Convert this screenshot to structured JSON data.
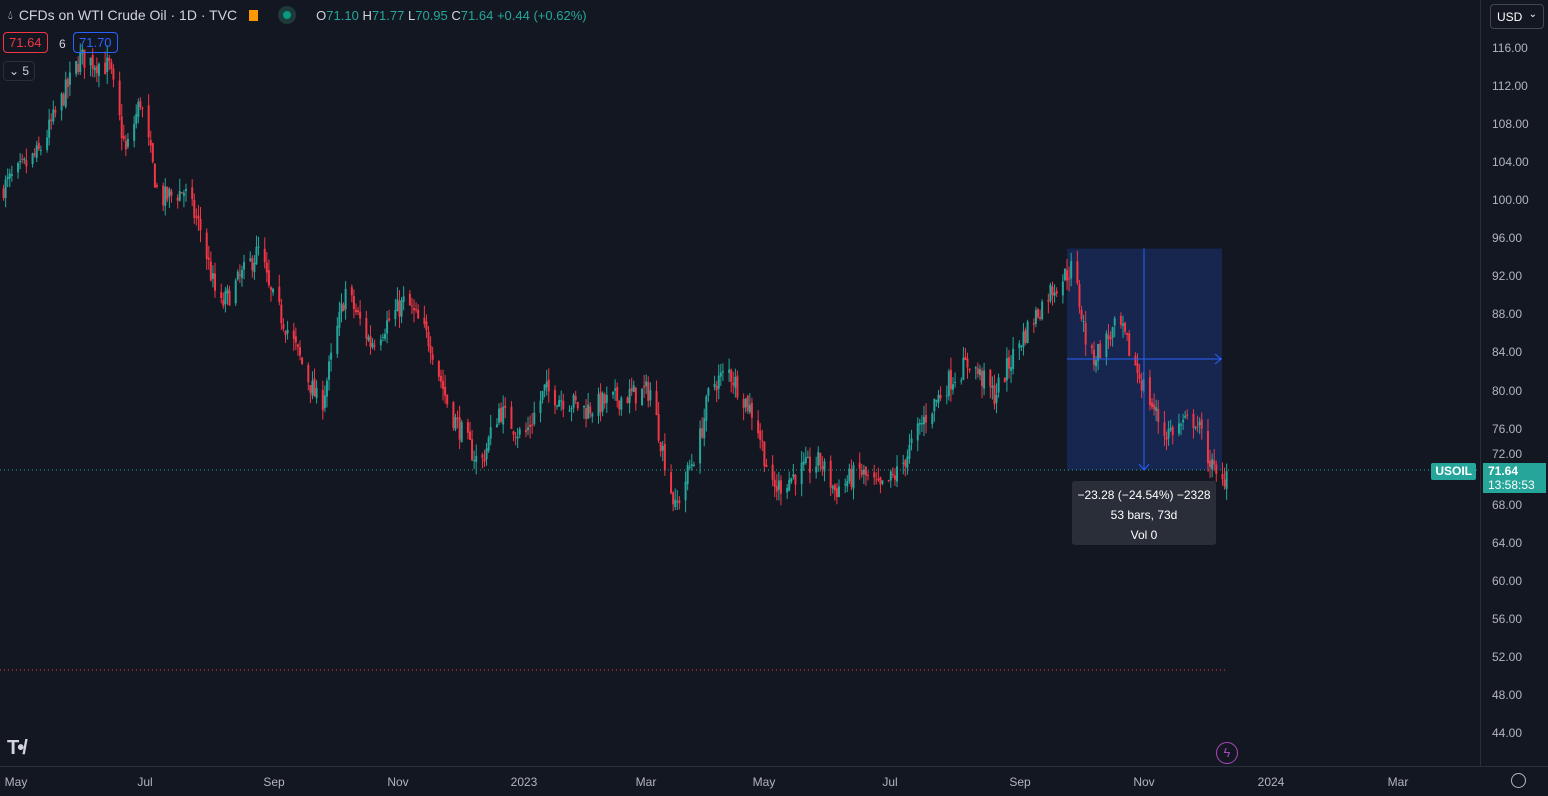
{
  "header": {
    "title": "CFDs on WTI Crude Oil · 1D · TVC",
    "open_label": "O",
    "open": "71.10",
    "high_label": "H",
    "high": "71.77",
    "low_label": "L",
    "low": "70.95",
    "close_label": "C",
    "close": "71.64",
    "change": "+0.44 (+0.62%)"
  },
  "trade": {
    "sell": "71.64",
    "spread": "6",
    "buy": "71.70"
  },
  "indicators_toggle": {
    "count": "5"
  },
  "currency": "USD",
  "price_axis": {
    "ticks": [
      "116.00",
      "112.00",
      "108.00",
      "104.00",
      "100.00",
      "96.00",
      "92.00",
      "88.00",
      "84.00",
      "80.00",
      "76.00",
      "72.00",
      "68.00",
      "64.00",
      "60.00",
      "56.00",
      "52.00",
      "48.00",
      "44.00"
    ],
    "symbol_tag": "USOIL",
    "last_price": "71.64",
    "countdown": "13:58:53"
  },
  "time_axis": {
    "ticks": [
      "May",
      "Jul",
      "Sep",
      "Nov",
      "2023",
      "Mar",
      "May",
      "Jul",
      "Sep",
      "Nov",
      "2024",
      "Mar"
    ]
  },
  "measure": {
    "line1": "−23.28 (−24.54%) −2328",
    "line2": "53 bars, 73d",
    "line3": "Vol 0",
    "from": 94.92,
    "to": 71.64
  },
  "colors": {
    "up": "#26a69a",
    "down": "#f23645",
    "bg": "#131722",
    "measure": "#2962ff"
  },
  "chart_data": {
    "type": "candlestick",
    "symbol": "USOIL",
    "interval": "1D",
    "ylim": [
      42,
      118
    ],
    "anchors": [
      [
        "2022-04-23",
        101
      ],
      [
        "2022-05-12",
        105
      ],
      [
        "2022-06-01",
        115
      ],
      [
        "2022-06-15",
        114
      ],
      [
        "2022-06-23",
        105
      ],
      [
        "2022-06-30",
        110.5
      ],
      [
        "2022-07-09",
        100
      ],
      [
        "2022-07-21",
        101
      ],
      [
        "2022-07-29",
        97
      ],
      [
        "2022-08-07",
        88.5
      ],
      [
        "2022-08-27",
        95
      ],
      [
        "2022-08-31",
        90.5
      ],
      [
        "2022-09-10",
        86
      ],
      [
        "2022-09-25",
        78
      ],
      [
        "2022-10-07",
        90.5
      ],
      [
        "2022-10-19",
        85
      ],
      [
        "2022-11-05",
        89.5
      ],
      [
        "2022-11-17",
        85
      ],
      [
        "2022-11-26",
        78
      ],
      [
        "2022-12-11",
        72
      ],
      [
        "2022-12-20",
        78
      ],
      [
        "2023-01-01",
        75
      ],
      [
        "2023-01-11",
        80
      ],
      [
        "2023-01-31",
        78
      ],
      [
        "2023-02-12",
        79
      ],
      [
        "2023-03-03",
        80
      ],
      [
        "2023-03-15",
        67.5
      ],
      [
        "2023-03-27",
        75
      ],
      [
        "2023-04-01",
        80.5
      ],
      [
        "2023-04-10",
        82
      ],
      [
        "2023-04-23",
        77
      ],
      [
        "2023-05-01",
        69.5
      ],
      [
        "2023-05-14",
        71.5
      ],
      [
        "2023-05-24",
        72.5
      ],
      [
        "2023-05-31",
        69.5
      ],
      [
        "2023-06-12",
        71.5
      ],
      [
        "2023-06-22",
        69.5
      ],
      [
        "2023-07-01",
        71.5
      ],
      [
        "2023-07-13",
        77
      ],
      [
        "2023-07-25",
        81
      ],
      [
        "2023-08-04",
        83
      ],
      [
        "2023-08-16",
        79.5
      ],
      [
        "2023-08-28",
        85
      ],
      [
        "2023-09-12",
        90.5
      ],
      [
        "2023-09-23",
        93
      ],
      [
        "2023-10-01",
        83
      ],
      [
        "2023-10-15",
        87
      ],
      [
        "2023-10-25",
        81.5
      ],
      [
        "2023-11-06",
        75.5
      ],
      [
        "2023-11-21",
        77
      ],
      [
        "2023-12-03",
        69.5
      ],
      [
        "2023-12-06",
        71.64
      ]
    ]
  }
}
